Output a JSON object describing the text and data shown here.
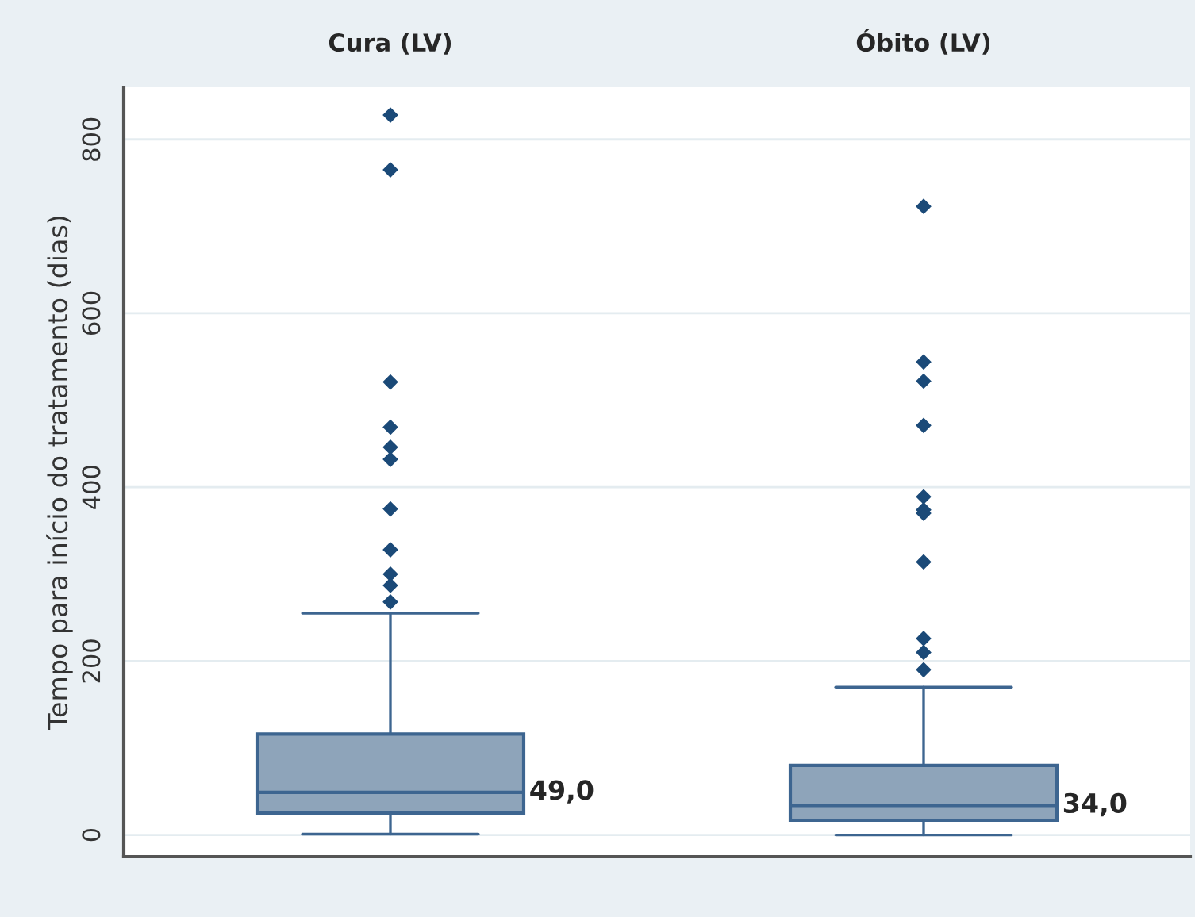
{
  "chart_data": {
    "type": "box",
    "categories": [
      "Cura (LV)",
      "Óbito (LV)"
    ],
    "ylabel": "Tempo para início do tratamento (dias)",
    "ylim": [
      -25,
      860
    ],
    "yticks": [
      0,
      200,
      400,
      600,
      800
    ],
    "grid": "y",
    "series": [
      {
        "color": "#8ea4ba",
        "boxes": [
          {
            "low": 1,
            "q1": 25,
            "median": 49,
            "q3": 116,
            "high": 255,
            "outliers": [
              828,
              765,
              521,
              469,
              446,
              432,
              375,
              328,
              300,
              287,
              268
            ]
          },
          {
            "low": 0,
            "q1": 17,
            "median": 34,
            "q3": 80,
            "high": 170,
            "outliers": [
              723,
              544,
              522,
              471,
              389,
              374,
              370,
              314,
              226,
              210,
              190
            ]
          }
        ]
      }
    ],
    "value_labels": [
      "49,0",
      "34,0"
    ]
  }
}
